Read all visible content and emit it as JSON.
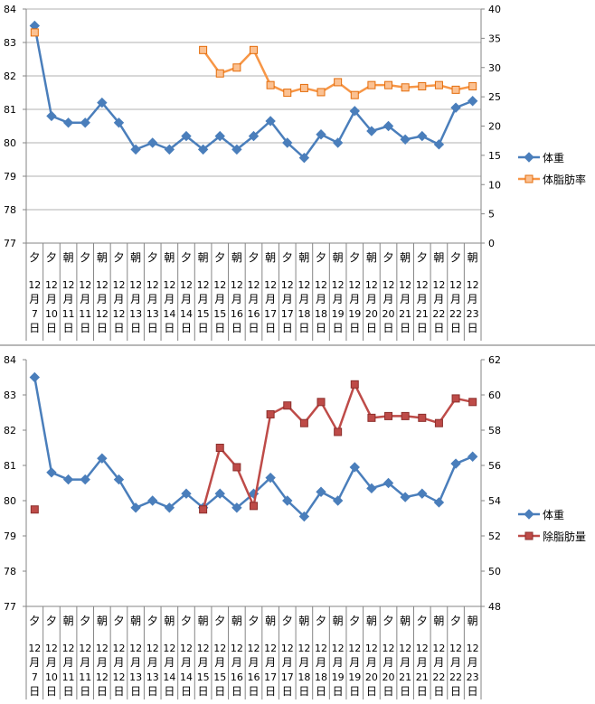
{
  "chart_data": [
    {
      "type": "line",
      "categories": [
        {
          "period": "夕",
          "month": "12",
          "unit_m": "月",
          "day": "7",
          "unit_d": "日"
        },
        {
          "period": "夕",
          "month": "12",
          "unit_m": "月",
          "day": "10",
          "unit_d": "日"
        },
        {
          "period": "朝",
          "month": "12",
          "unit_m": "月",
          "day": "11",
          "unit_d": "日"
        },
        {
          "period": "夕",
          "month": "12",
          "unit_m": "月",
          "day": "11",
          "unit_d": "日"
        },
        {
          "period": "朝",
          "month": "12",
          "unit_m": "月",
          "day": "12",
          "unit_d": "日"
        },
        {
          "period": "夕",
          "month": "12",
          "unit_m": "月",
          "day": "12",
          "unit_d": "日"
        },
        {
          "period": "朝",
          "month": "12",
          "unit_m": "月",
          "day": "13",
          "unit_d": "日"
        },
        {
          "period": "夕",
          "month": "12",
          "unit_m": "月",
          "day": "13",
          "unit_d": "日"
        },
        {
          "period": "朝",
          "month": "12",
          "unit_m": "月",
          "day": "14",
          "unit_d": "日"
        },
        {
          "period": "夕",
          "month": "12",
          "unit_m": "月",
          "day": "14",
          "unit_d": "日"
        },
        {
          "period": "朝",
          "month": "12",
          "unit_m": "月",
          "day": "15",
          "unit_d": "日"
        },
        {
          "period": "夕",
          "month": "12",
          "unit_m": "月",
          "day": "15",
          "unit_d": "日"
        },
        {
          "period": "朝",
          "month": "12",
          "unit_m": "月",
          "day": "16",
          "unit_d": "日"
        },
        {
          "period": "夕",
          "month": "12",
          "unit_m": "月",
          "day": "16",
          "unit_d": "日"
        },
        {
          "period": "朝",
          "month": "12",
          "unit_m": "月",
          "day": "17",
          "unit_d": "日"
        },
        {
          "period": "夕",
          "month": "12",
          "unit_m": "月",
          "day": "17",
          "unit_d": "日"
        },
        {
          "period": "朝",
          "month": "12",
          "unit_m": "月",
          "day": "18",
          "unit_d": "日"
        },
        {
          "period": "夕",
          "month": "12",
          "unit_m": "月",
          "day": "18",
          "unit_d": "日"
        },
        {
          "period": "朝",
          "month": "12",
          "unit_m": "月",
          "day": "19",
          "unit_d": "日"
        },
        {
          "period": "夕",
          "month": "12",
          "unit_m": "月",
          "day": "19",
          "unit_d": "日"
        },
        {
          "period": "朝",
          "month": "12",
          "unit_m": "月",
          "day": "20",
          "unit_d": "日"
        },
        {
          "period": "夕",
          "month": "12",
          "unit_m": "月",
          "day": "20",
          "unit_d": "日"
        },
        {
          "period": "朝",
          "month": "12",
          "unit_m": "月",
          "day": "21",
          "unit_d": "日"
        },
        {
          "period": "夕",
          "month": "12",
          "unit_m": "月",
          "day": "21",
          "unit_d": "日"
        },
        {
          "period": "朝",
          "month": "12",
          "unit_m": "月",
          "day": "22",
          "unit_d": "日"
        },
        {
          "period": "夕",
          "month": "12",
          "unit_m": "月",
          "day": "22",
          "unit_d": "日"
        },
        {
          "period": "朝",
          "month": "12",
          "unit_m": "月",
          "day": "23",
          "unit_d": "日"
        }
      ],
      "y_left": {
        "min": 77,
        "max": 84,
        "step": 1,
        "ticks": [
          "77",
          "78",
          "79",
          "80",
          "81",
          "82",
          "83",
          "84"
        ]
      },
      "y_right": {
        "min": 0,
        "max": 40,
        "step": 5,
        "ticks": [
          "0",
          "5",
          "10",
          "15",
          "20",
          "25",
          "30",
          "35",
          "40"
        ]
      },
      "grid": true,
      "legend_position": "right",
      "series": [
        {
          "name": "体重",
          "axis": "left",
          "color": "#4a7ebb",
          "marker": "diamond",
          "values": [
            83.5,
            80.8,
            80.6,
            80.6,
            81.2,
            80.6,
            79.8,
            80.0,
            79.8,
            80.2,
            79.8,
            80.2,
            79.8,
            80.2,
            80.65,
            80.0,
            79.55,
            80.25,
            80.0,
            80.95,
            80.35,
            80.5,
            80.1,
            80.2,
            79.95,
            81.05,
            81.25
          ]
        },
        {
          "name": "体脂肪率",
          "axis": "right",
          "color": "#f79646",
          "marker": "square",
          "values": [
            36,
            null,
            null,
            null,
            null,
            null,
            null,
            null,
            null,
            null,
            33,
            29,
            30,
            33,
            27,
            25.7,
            26.5,
            25.8,
            27.5,
            25.3,
            27.0,
            27.0,
            26.6,
            26.8,
            27.0,
            26.2,
            26.8
          ]
        }
      ]
    },
    {
      "type": "line",
      "categories": [
        {
          "period": "夕",
          "month": "12",
          "unit_m": "月",
          "day": "7",
          "unit_d": "日"
        },
        {
          "period": "夕",
          "month": "12",
          "unit_m": "月",
          "day": "10",
          "unit_d": "日"
        },
        {
          "period": "朝",
          "month": "12",
          "unit_m": "月",
          "day": "11",
          "unit_d": "日"
        },
        {
          "period": "夕",
          "month": "12",
          "unit_m": "月",
          "day": "11",
          "unit_d": "日"
        },
        {
          "period": "朝",
          "month": "12",
          "unit_m": "月",
          "day": "12",
          "unit_d": "日"
        },
        {
          "period": "夕",
          "month": "12",
          "unit_m": "月",
          "day": "12",
          "unit_d": "日"
        },
        {
          "period": "朝",
          "month": "12",
          "unit_m": "月",
          "day": "13",
          "unit_d": "日"
        },
        {
          "period": "夕",
          "month": "12",
          "unit_m": "月",
          "day": "13",
          "unit_d": "日"
        },
        {
          "period": "朝",
          "month": "12",
          "unit_m": "月",
          "day": "14",
          "unit_d": "日"
        },
        {
          "period": "夕",
          "month": "12",
          "unit_m": "月",
          "day": "14",
          "unit_d": "日"
        },
        {
          "period": "朝",
          "month": "12",
          "unit_m": "月",
          "day": "15",
          "unit_d": "日"
        },
        {
          "period": "夕",
          "month": "12",
          "unit_m": "月",
          "day": "15",
          "unit_d": "日"
        },
        {
          "period": "朝",
          "month": "12",
          "unit_m": "月",
          "day": "16",
          "unit_d": "日"
        },
        {
          "period": "夕",
          "month": "12",
          "unit_m": "月",
          "day": "16",
          "unit_d": "日"
        },
        {
          "period": "朝",
          "month": "12",
          "unit_m": "月",
          "day": "17",
          "unit_d": "日"
        },
        {
          "period": "夕",
          "month": "12",
          "unit_m": "月",
          "day": "17",
          "unit_d": "日"
        },
        {
          "period": "朝",
          "month": "12",
          "unit_m": "月",
          "day": "18",
          "unit_d": "日"
        },
        {
          "period": "夕",
          "month": "12",
          "unit_m": "月",
          "day": "18",
          "unit_d": "日"
        },
        {
          "period": "朝",
          "month": "12",
          "unit_m": "月",
          "day": "19",
          "unit_d": "日"
        },
        {
          "period": "夕",
          "month": "12",
          "unit_m": "月",
          "day": "19",
          "unit_d": "日"
        },
        {
          "period": "朝",
          "month": "12",
          "unit_m": "月",
          "day": "20",
          "unit_d": "日"
        },
        {
          "period": "夕",
          "month": "12",
          "unit_m": "月",
          "day": "20",
          "unit_d": "日"
        },
        {
          "period": "朝",
          "month": "12",
          "unit_m": "月",
          "day": "21",
          "unit_d": "日"
        },
        {
          "period": "夕",
          "month": "12",
          "unit_m": "月",
          "day": "21",
          "unit_d": "日"
        },
        {
          "period": "朝",
          "month": "12",
          "unit_m": "月",
          "day": "22",
          "unit_d": "日"
        },
        {
          "period": "夕",
          "month": "12",
          "unit_m": "月",
          "day": "22",
          "unit_d": "日"
        },
        {
          "period": "朝",
          "month": "12",
          "unit_m": "月",
          "day": "23",
          "unit_d": "日"
        }
      ],
      "y_left": {
        "min": 77,
        "max": 84,
        "step": 1,
        "ticks": [
          "77",
          "78",
          "79",
          "80",
          "81",
          "82",
          "83",
          "84"
        ]
      },
      "y_right": {
        "min": 48,
        "max": 62,
        "step": 2,
        "ticks": [
          "48",
          "50",
          "52",
          "54",
          "56",
          "58",
          "60",
          "62"
        ]
      },
      "grid": false,
      "legend_position": "right",
      "series": [
        {
          "name": "体重",
          "axis": "left",
          "color": "#4a7ebb",
          "marker": "diamond",
          "values": [
            83.5,
            80.8,
            80.6,
            80.6,
            81.2,
            80.6,
            79.8,
            80.0,
            79.8,
            80.2,
            79.8,
            80.2,
            79.8,
            80.2,
            80.65,
            80.0,
            79.55,
            80.25,
            80.0,
            80.95,
            80.35,
            80.5,
            80.1,
            80.2,
            79.95,
            81.05,
            81.25
          ]
        },
        {
          "name": "除脂肪量",
          "axis": "right",
          "color": "#be4b48",
          "marker": "square",
          "values": [
            53.5,
            null,
            null,
            null,
            null,
            null,
            null,
            null,
            null,
            null,
            53.5,
            57.0,
            55.9,
            53.7,
            58.9,
            59.4,
            58.4,
            59.6,
            57.9,
            60.6,
            58.7,
            58.8,
            58.8,
            58.7,
            58.4,
            59.8,
            59.6
          ]
        }
      ]
    }
  ]
}
